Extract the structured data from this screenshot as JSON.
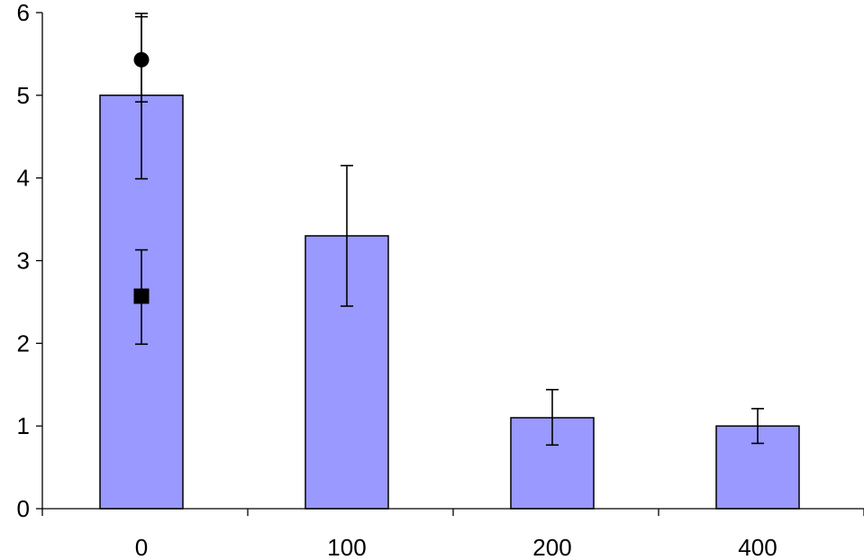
{
  "chart_data": {
    "type": "bar",
    "title": "",
    "xlabel": "",
    "ylabel": "",
    "categories": [
      "0",
      "100",
      "200",
      "400"
    ],
    "ylim": [
      0,
      6
    ],
    "y_ticks": [
      "0",
      "1",
      "2",
      "3",
      "4",
      "5",
      "6"
    ],
    "grid": false,
    "legend": "none",
    "series": [
      {
        "type": "bar",
        "values": [
          5.0,
          3.3,
          1.1,
          1.0
        ],
        "error_low": [
          3.99,
          2.45,
          0.77,
          0.79
        ],
        "error_high": [
          5.99,
          4.15,
          1.44,
          1.21
        ],
        "color": "#9999ff"
      },
      {
        "type": "marker",
        "marker": "circle",
        "category": "0",
        "value": 5.43,
        "error_low": 4.92,
        "error_high": 5.95,
        "color": "#000000"
      },
      {
        "type": "marker",
        "marker": "square",
        "category": "0",
        "value": 2.57,
        "error_low": 1.99,
        "error_high": 3.13,
        "color": "#000000"
      }
    ]
  }
}
